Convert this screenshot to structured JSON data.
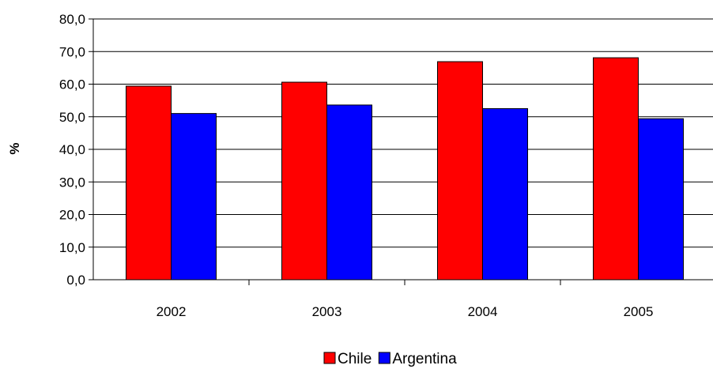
{
  "chart_data": {
    "type": "bar",
    "title": "",
    "xlabel": "",
    "ylabel": "%",
    "categories": [
      "2002",
      "2003",
      "2004",
      "2005"
    ],
    "series": [
      {
        "name": "Chile",
        "color": "#ff0000",
        "values": [
          59.4,
          60.6,
          66.9,
          68.1
        ]
      },
      {
        "name": "Argentina",
        "color": "#0000ff",
        "values": [
          51.0,
          53.6,
          52.5,
          49.4
        ]
      }
    ],
    "ylim": [
      0,
      80
    ],
    "yticks": [
      "0,0",
      "10,0",
      "20,0",
      "30,0",
      "40,0",
      "50,0",
      "60,0",
      "70,0",
      "80,0"
    ],
    "grid": true,
    "legend_position": "bottom"
  }
}
